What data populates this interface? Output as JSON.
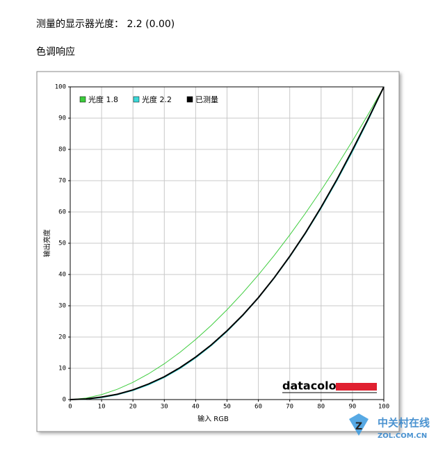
{
  "header": {
    "title": "测量的显示器光度：  2.2 (0.00)",
    "subtitle": "色调响应"
  },
  "watermark": {
    "name": "中关村在线",
    "url": "ZOL.COM.CN"
  },
  "chart_data": {
    "type": "line",
    "x_label": "输入 RGB",
    "y_label": "输出亮度",
    "logo": "datacolor",
    "x": [
      0,
      5,
      10,
      15,
      20,
      25,
      30,
      35,
      40,
      45,
      50,
      55,
      60,
      65,
      70,
      75,
      80,
      85,
      90,
      95,
      100
    ],
    "series": [
      {
        "name": "光度 1.8",
        "color": "#3ccc3c",
        "values": [
          0,
          0.46,
          1.58,
          3.29,
          5.52,
          8.25,
          11.45,
          15.11,
          19.22,
          23.76,
          28.72,
          34.09,
          39.87,
          46.05,
          52.62,
          59.58,
          66.92,
          74.64,
          82.72,
          91.18,
          100
        ]
      },
      {
        "name": "光度 2.2",
        "color": "#3cd8d8",
        "values": [
          0,
          0.14,
          0.63,
          1.54,
          2.9,
          4.74,
          7.07,
          9.93,
          13.32,
          17.26,
          21.76,
          26.84,
          32.5,
          38.76,
          45.63,
          53.1,
          61.21,
          69.94,
          79.31,
          89.33,
          100
        ]
      },
      {
        "name": "已测量",
        "color": "#000000",
        "values": [
          0,
          0.2,
          0.8,
          1.7,
          3.1,
          5.0,
          7.3,
          10.2,
          13.6,
          17.5,
          22.0,
          27.0,
          32.6,
          38.9,
          45.8,
          53.3,
          61.5,
          70.3,
          79.8,
          89.7,
          100
        ]
      }
    ],
    "xlim": [
      0,
      100
    ],
    "ylim": [
      0,
      100
    ],
    "xticks": [
      0,
      10,
      20,
      30,
      40,
      50,
      60,
      70,
      80,
      90,
      100
    ],
    "yticks": [
      0,
      10,
      20,
      30,
      40,
      50,
      60,
      70,
      80,
      90,
      100
    ],
    "grid": true,
    "legend": "top-left"
  }
}
